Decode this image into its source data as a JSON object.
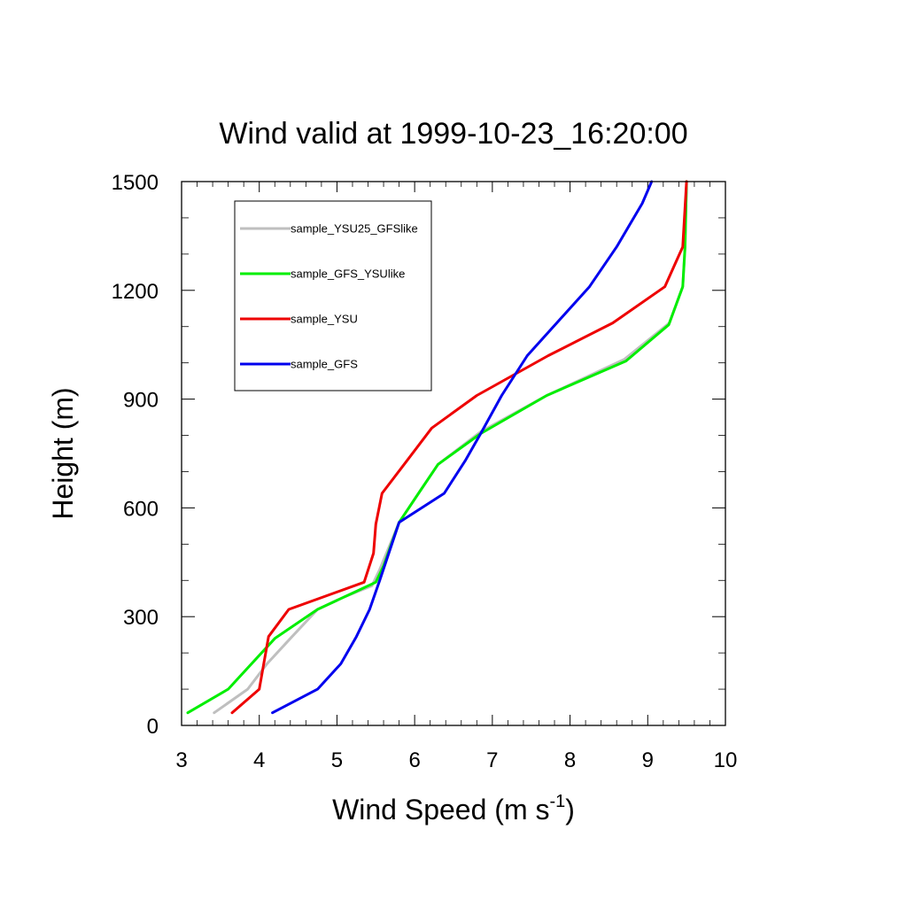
{
  "chart_data": {
    "type": "line",
    "title": "Wind valid at 1999-10-23_16:20:00",
    "xlabel": "Wind Speed (m s",
    "xlabel_sup": "-1",
    "xlabel_end": ")",
    "ylabel": "Height (m)",
    "xlim": [
      3,
      10
    ],
    "ylim": [
      0,
      1500
    ],
    "xticks": [
      "3",
      "4",
      "5",
      "6",
      "7",
      "8",
      "9",
      "10"
    ],
    "yticks": [
      "0",
      "300",
      "600",
      "900",
      "1200",
      "1500"
    ],
    "legend_position": "top-left",
    "grid": false,
    "series": [
      {
        "name": "sample_YSU25_GFSlike",
        "color": "#bfbfbf",
        "points": [
          [
            3.42,
            35
          ],
          [
            3.85,
            100
          ],
          [
            4.1,
            170
          ],
          [
            4.4,
            240
          ],
          [
            4.75,
            320
          ],
          [
            5.1,
            355
          ],
          [
            5.45,
            385
          ],
          [
            5.55,
            430
          ],
          [
            5.8,
            560
          ],
          [
            6.05,
            640
          ],
          [
            6.3,
            720
          ],
          [
            6.85,
            810
          ],
          [
            7.7,
            910
          ],
          [
            8.7,
            1010
          ],
          [
            9.28,
            1110
          ],
          [
            9.45,
            1210
          ],
          [
            9.48,
            1320
          ],
          [
            9.5,
            1500
          ]
        ]
      },
      {
        "name": "sample_GFS_YSUlike",
        "color": "#00ee00",
        "points": [
          [
            3.08,
            35
          ],
          [
            3.6,
            100
          ],
          [
            4.2,
            240
          ],
          [
            4.75,
            320
          ],
          [
            5.2,
            365
          ],
          [
            5.5,
            395
          ],
          [
            5.6,
            440
          ],
          [
            5.8,
            560
          ],
          [
            6.05,
            640
          ],
          [
            6.3,
            720
          ],
          [
            6.85,
            805
          ],
          [
            7.7,
            910
          ],
          [
            8.72,
            1005
          ],
          [
            9.27,
            1105
          ],
          [
            9.45,
            1210
          ],
          [
            9.48,
            1320
          ],
          [
            9.5,
            1500
          ]
        ]
      },
      {
        "name": "sample_YSU",
        "color": "#ee0000",
        "points": [
          [
            3.65,
            35
          ],
          [
            4.0,
            100
          ],
          [
            4.12,
            245
          ],
          [
            4.38,
            320
          ],
          [
            5.35,
            395
          ],
          [
            5.47,
            475
          ],
          [
            5.5,
            555
          ],
          [
            5.58,
            640
          ],
          [
            5.9,
            730
          ],
          [
            6.22,
            820
          ],
          [
            6.8,
            910
          ],
          [
            7.72,
            1020
          ],
          [
            8.55,
            1110
          ],
          [
            9.22,
            1210
          ],
          [
            9.45,
            1320
          ],
          [
            9.5,
            1500
          ]
        ]
      },
      {
        "name": "sample_GFS",
        "color": "#0000ee",
        "points": [
          [
            4.17,
            35
          ],
          [
            4.75,
            100
          ],
          [
            5.05,
            170
          ],
          [
            5.25,
            245
          ],
          [
            5.42,
            320
          ],
          [
            5.55,
            400
          ],
          [
            5.8,
            560
          ],
          [
            6.38,
            640
          ],
          [
            6.65,
            730
          ],
          [
            6.85,
            805
          ],
          [
            7.12,
            910
          ],
          [
            7.45,
            1020
          ],
          [
            8.25,
            1210
          ],
          [
            8.6,
            1320
          ],
          [
            8.93,
            1440
          ],
          [
            9.05,
            1500
          ]
        ]
      }
    ]
  }
}
